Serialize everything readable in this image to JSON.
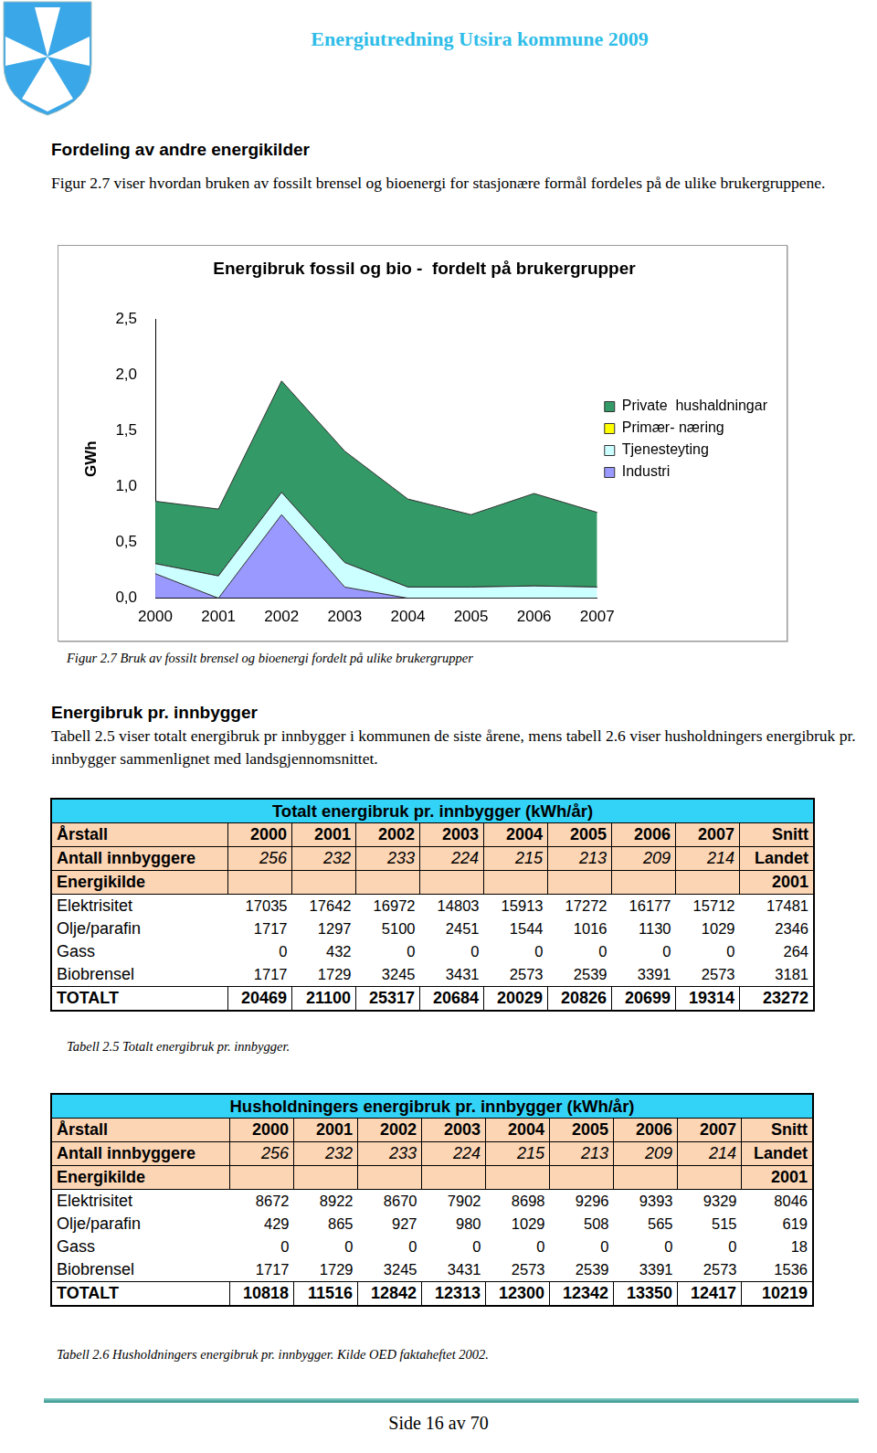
{
  "header": {
    "title": "Energiutredning Utsira kommune 2009"
  },
  "section1": {
    "heading": "Fordeling av andre energikilder",
    "paragraph": "Figur 2.7 viser hvordan bruken av fossilt brensel og bioenergi for stasjonære formål fordeles på de ulike brukergruppene."
  },
  "chart_data": {
    "type": "area",
    "stacked": true,
    "title": "Energibruk fossil og bio -  fordelt på brukergrupper",
    "y_label": "GWh",
    "categories": [
      "2000",
      "2001",
      "2002",
      "2003",
      "2004",
      "2005",
      "2006",
      "2007"
    ],
    "ylim": [
      0,
      2.5
    ],
    "yticks": [
      {
        "value": 0,
        "label": "0,0"
      },
      {
        "value": 0.5,
        "label": "0,5"
      },
      {
        "value": 1,
        "label": "1,0"
      },
      {
        "value": 1.5,
        "label": "1,5"
      },
      {
        "value": 2,
        "label": "2,0"
      },
      {
        "value": 2.5,
        "label": "2,5"
      }
    ],
    "grid": false,
    "legend": "right",
    "series": [
      {
        "name": "Private  hushaldningar",
        "color": "#339966",
        "values": [
          0.56,
          0.6,
          1.0,
          1.0,
          0.79,
          0.65,
          0.83,
          0.67
        ]
      },
      {
        "name": "Primær- næring",
        "color": "#ffff00",
        "values": [
          0,
          0,
          0,
          0,
          0,
          0,
          0,
          0
        ]
      },
      {
        "name": "Tjenesteyting",
        "color": "#ccffff",
        "values": [
          0.09,
          0.2,
          0.2,
          0.22,
          0.1,
          0.1,
          0.11,
          0.1
        ]
      },
      {
        "name": "Industri",
        "color": "#9999ff",
        "values": [
          0.22,
          0,
          0.75,
          0.1,
          0,
          0,
          0,
          0
        ]
      }
    ]
  },
  "figure_caption": "Figur 2.7 Bruk av fossilt brensel og bioenergi fordelt på ulike brukergrupper",
  "section2": {
    "heading": "Energibruk pr. innbygger",
    "paragraph": "Tabell 2.5 viser totalt energibruk pr innbygger i kommunen de siste årene, mens tabell 2.6 viser husholdningers energibruk pr. innbygger sammenlignet med landsgjennomsnittet."
  },
  "table1": {
    "title": "Totalt energibruk pr. innbygger (kWh/år)",
    "year_label": "Årstall",
    "years": [
      2000,
      2001,
      2002,
      2003,
      2004,
      2005,
      2006,
      2007
    ],
    "average_label": "Snitt",
    "population_label": "Antall innbyggere",
    "population": [
      256,
      232,
      233,
      224,
      215,
      213,
      209,
      214
    ],
    "average_sublabel": "Landet",
    "source_label": "Energikilde",
    "average_year": 2001,
    "rows": [
      {
        "label": "Elektrisitet",
        "values": [
          17035,
          17642,
          16972,
          14803,
          15913,
          17272,
          16177,
          15712
        ],
        "average": 17481
      },
      {
        "label": "Olje/parafin",
        "values": [
          1717,
          1297,
          5100,
          2451,
          1544,
          1016,
          1130,
          1029
        ],
        "average": 2346
      },
      {
        "label": "Gass",
        "values": [
          0,
          432,
          0,
          0,
          0,
          0,
          0,
          0
        ],
        "average": 264
      },
      {
        "label": "Biobrensel",
        "values": [
          1717,
          1729,
          3245,
          3431,
          2573,
          2539,
          3391,
          2573
        ],
        "average": 3181
      }
    ],
    "total": {
      "label": "TOTALT",
      "values": [
        20469,
        21100,
        25317,
        20684,
        20029,
        20826,
        20699,
        19314
      ],
      "average": 23272
    },
    "caption": "Tabell 2.5 Totalt energibruk pr. innbygger."
  },
  "table2": {
    "title": "Husholdningers energibruk pr. innbygger (kWh/år)",
    "year_label": "Årstall",
    "years": [
      2000,
      2001,
      2002,
      2003,
      2004,
      2005,
      2006,
      2007
    ],
    "average_label": "Snitt",
    "population_label": "Antall innbyggere",
    "population": [
      256,
      232,
      233,
      224,
      215,
      213,
      209,
      214
    ],
    "average_sublabel": "Landet",
    "source_label": "Energikilde",
    "average_year": 2001,
    "rows": [
      {
        "label": "Elektrisitet",
        "values": [
          8672,
          8922,
          8670,
          7902,
          8698,
          9296,
          9393,
          9329
        ],
        "average": 8046
      },
      {
        "label": "Olje/parafin",
        "values": [
          429,
          865,
          927,
          980,
          1029,
          508,
          565,
          515
        ],
        "average": 619
      },
      {
        "label": "Gass",
        "values": [
          0,
          0,
          0,
          0,
          0,
          0,
          0,
          0
        ],
        "average": 18
      },
      {
        "label": "Biobrensel",
        "values": [
          1717,
          1729,
          3245,
          3431,
          2573,
          2539,
          3391,
          2573
        ],
        "average": 1536
      }
    ],
    "total": {
      "label": "TOTALT",
      "values": [
        10818,
        11516,
        12842,
        12313,
        12300,
        12342,
        13350,
        12417
      ],
      "average": 10219
    },
    "caption": "Tabell 2.6 Husholdningers energibruk pr. innbygger. Kilde OED faktaheftet 2002."
  },
  "footer": {
    "page": "Side 16 av 70"
  }
}
